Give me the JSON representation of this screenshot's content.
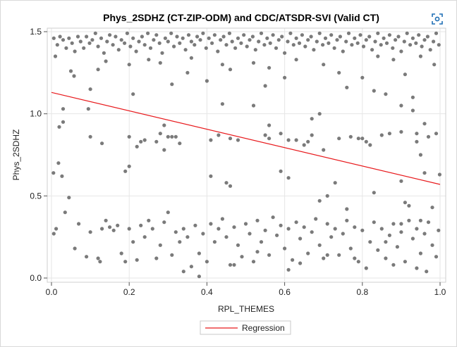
{
  "chart_data": {
    "type": "scatter",
    "title": "Phys_2SDHZ (CT-ZIP-ODM) and CDC/ATSDR-SVI (Valid CT)",
    "xlabel": "RPL_THEMES",
    "ylabel": "Phys_2SDHZ",
    "xlim": [
      0.0,
      1.0
    ],
    "ylim": [
      0.0,
      1.5
    ],
    "x_ticks": [
      "0.0",
      "0.2",
      "0.4",
      "0.6",
      "0.8",
      "1.0"
    ],
    "y_ticks": [
      "0.0",
      "0.5",
      "1.0",
      "1.5"
    ],
    "grid": true,
    "legend": {
      "placement": "bottom-center",
      "entries": [
        {
          "label": "Regression",
          "color": "#e8191c"
        }
      ]
    },
    "regression": {
      "name": "Regression",
      "x": [
        0.0,
        1.0
      ],
      "y": [
        1.13,
        0.57
      ],
      "color": "#e8191c"
    },
    "marker_color": "#7a7a7a",
    "points": [
      [
        0.006,
        1.46
      ],
      [
        0.015,
        1.42
      ],
      [
        0.022,
        1.47
      ],
      [
        0.03,
        1.45
      ],
      [
        0.038,
        1.4
      ],
      [
        0.045,
        1.46
      ],
      [
        0.053,
        1.43
      ],
      [
        0.06,
        1.38
      ],
      [
        0.068,
        1.47
      ],
      [
        0.075,
        1.44
      ],
      [
        0.083,
        1.4
      ],
      [
        0.09,
        1.47
      ],
      [
        0.098,
        1.43
      ],
      [
        0.105,
        1.45
      ],
      [
        0.113,
        1.49
      ],
      [
        0.12,
        1.41
      ],
      [
        0.128,
        1.46
      ],
      [
        0.135,
        1.37
      ],
      [
        0.143,
        1.44
      ],
      [
        0.15,
        1.48
      ],
      [
        0.158,
        1.42
      ],
      [
        0.165,
        1.47
      ],
      [
        0.173,
        1.39
      ],
      [
        0.18,
        1.45
      ],
      [
        0.188,
        1.43
      ],
      [
        0.195,
        1.49
      ],
      [
        0.203,
        1.41
      ],
      [
        0.21,
        1.46
      ],
      [
        0.218,
        1.38
      ],
      [
        0.225,
        1.44
      ],
      [
        0.233,
        1.47
      ],
      [
        0.24,
        1.42
      ],
      [
        0.248,
        1.49
      ],
      [
        0.255,
        1.4
      ],
      [
        0.263,
        1.45
      ],
      [
        0.27,
        1.48
      ],
      [
        0.278,
        1.43
      ],
      [
        0.285,
        1.37
      ],
      [
        0.293,
        1.46
      ],
      [
        0.3,
        1.44
      ],
      [
        0.308,
        1.49
      ],
      [
        0.315,
        1.41
      ],
      [
        0.323,
        1.47
      ],
      [
        0.33,
        1.43
      ],
      [
        0.338,
        1.46
      ],
      [
        0.345,
        1.39
      ],
      [
        0.353,
        1.48
      ],
      [
        0.36,
        1.44
      ],
      [
        0.368,
        1.42
      ],
      [
        0.375,
        1.47
      ],
      [
        0.383,
        1.45
      ],
      [
        0.39,
        1.49
      ],
      [
        0.398,
        1.4
      ],
      [
        0.405,
        1.46
      ],
      [
        0.413,
        1.43
      ],
      [
        0.42,
        1.48
      ],
      [
        0.428,
        1.38
      ],
      [
        0.435,
        1.45
      ],
      [
        0.443,
        1.47
      ],
      [
        0.45,
        1.42
      ],
      [
        0.458,
        1.49
      ],
      [
        0.465,
        1.44
      ],
      [
        0.473,
        1.4
      ],
      [
        0.48,
        1.46
      ],
      [
        0.488,
        1.43
      ],
      [
        0.495,
        1.48
      ],
      [
        0.503,
        1.41
      ],
      [
        0.51,
        1.45
      ],
      [
        0.518,
        1.47
      ],
      [
        0.525,
        1.39
      ],
      [
        0.533,
        1.44
      ],
      [
        0.54,
        1.49
      ],
      [
        0.548,
        1.42
      ],
      [
        0.555,
        1.46
      ],
      [
        0.563,
        1.43
      ],
      [
        0.57,
        1.48
      ],
      [
        0.578,
        1.4
      ],
      [
        0.585,
        1.45
      ],
      [
        0.593,
        1.47
      ],
      [
        0.6,
        1.37
      ],
      [
        0.608,
        1.44
      ],
      [
        0.615,
        1.49
      ],
      [
        0.623,
        1.42
      ],
      [
        0.63,
        1.46
      ],
      [
        0.638,
        1.43
      ],
      [
        0.645,
        1.48
      ],
      [
        0.653,
        1.41
      ],
      [
        0.66,
        1.45
      ],
      [
        0.668,
        1.47
      ],
      [
        0.675,
        1.39
      ],
      [
        0.683,
        1.44
      ],
      [
        0.69,
        1.49
      ],
      [
        0.698,
        1.42
      ],
      [
        0.705,
        1.46
      ],
      [
        0.713,
        1.43
      ],
      [
        0.72,
        1.48
      ],
      [
        0.728,
        1.4
      ],
      [
        0.735,
        1.45
      ],
      [
        0.743,
        1.47
      ],
      [
        0.75,
        1.38
      ],
      [
        0.758,
        1.44
      ],
      [
        0.765,
        1.49
      ],
      [
        0.773,
        1.42
      ],
      [
        0.78,
        1.46
      ],
      [
        0.788,
        1.43
      ],
      [
        0.795,
        1.48
      ],
      [
        0.803,
        1.41
      ],
      [
        0.81,
        1.45
      ],
      [
        0.818,
        1.47
      ],
      [
        0.825,
        1.39
      ],
      [
        0.833,
        1.44
      ],
      [
        0.84,
        1.49
      ],
      [
        0.848,
        1.42
      ],
      [
        0.855,
        1.46
      ],
      [
        0.863,
        1.43
      ],
      [
        0.87,
        1.48
      ],
      [
        0.878,
        1.4
      ],
      [
        0.885,
        1.45
      ],
      [
        0.893,
        1.47
      ],
      [
        0.9,
        1.38
      ],
      [
        0.908,
        1.44
      ],
      [
        0.915,
        1.49
      ],
      [
        0.923,
        1.42
      ],
      [
        0.93,
        1.46
      ],
      [
        0.938,
        1.43
      ],
      [
        0.945,
        1.48
      ],
      [
        0.953,
        1.41
      ],
      [
        0.96,
        1.45
      ],
      [
        0.968,
        1.47
      ],
      [
        0.975,
        1.39
      ],
      [
        0.983,
        1.44
      ],
      [
        0.99,
        1.49
      ],
      [
        0.997,
        1.42
      ],
      [
        0.01,
        1.35
      ],
      [
        0.05,
        1.26
      ],
      [
        0.058,
        1.23
      ],
      [
        0.12,
        1.27
      ],
      [
        0.14,
        1.32
      ],
      [
        0.2,
        1.3
      ],
      [
        0.25,
        1.33
      ],
      [
        0.28,
        1.31
      ],
      [
        0.35,
        1.25
      ],
      [
        0.36,
        1.34
      ],
      [
        0.4,
        1.2
      ],
      [
        0.44,
        1.3
      ],
      [
        0.46,
        1.27
      ],
      [
        0.52,
        1.31
      ],
      [
        0.56,
        1.28
      ],
      [
        0.6,
        1.22
      ],
      [
        0.63,
        1.33
      ],
      [
        0.7,
        1.3
      ],
      [
        0.74,
        1.25
      ],
      [
        0.8,
        1.22
      ],
      [
        0.84,
        1.35
      ],
      [
        0.88,
        1.33
      ],
      [
        0.91,
        1.24
      ],
      [
        0.95,
        1.35
      ],
      [
        0.985,
        1.3
      ],
      [
        0.1,
        1.15
      ],
      [
        0.21,
        1.12
      ],
      [
        0.31,
        1.18
      ],
      [
        0.55,
        1.17
      ],
      [
        0.76,
        1.16
      ],
      [
        0.83,
        1.14
      ],
      [
        0.86,
        1.12
      ],
      [
        0.93,
        1.1
      ],
      [
        0.03,
        1.03
      ],
      [
        0.095,
        1.03
      ],
      [
        0.44,
        1.06
      ],
      [
        0.52,
        1.05
      ],
      [
        0.69,
        1.0
      ],
      [
        0.9,
        1.05
      ],
      [
        0.93,
        1.02
      ],
      [
        0.03,
        0.95
      ],
      [
        0.29,
        0.93
      ],
      [
        0.56,
        0.93
      ],
      [
        0.67,
        0.97
      ],
      [
        0.96,
        0.94
      ],
      [
        0.02,
        0.92
      ],
      [
        0.1,
        0.86
      ],
      [
        0.13,
        0.82
      ],
      [
        0.2,
        0.86
      ],
      [
        0.22,
        0.8
      ],
      [
        0.23,
        0.83
      ],
      [
        0.24,
        0.84
      ],
      [
        0.27,
        0.83
      ],
      [
        0.28,
        0.88
      ],
      [
        0.3,
        0.86
      ],
      [
        0.31,
        0.86
      ],
      [
        0.32,
        0.86
      ],
      [
        0.29,
        0.78
      ],
      [
        0.33,
        0.82
      ],
      [
        0.41,
        0.84
      ],
      [
        0.43,
        0.87
      ],
      [
        0.46,
        0.85
      ],
      [
        0.48,
        0.84
      ],
      [
        0.55,
        0.87
      ],
      [
        0.56,
        0.85
      ],
      [
        0.59,
        0.88
      ],
      [
        0.61,
        0.84
      ],
      [
        0.63,
        0.84
      ],
      [
        0.65,
        0.81
      ],
      [
        0.66,
        0.83
      ],
      [
        0.67,
        0.87
      ],
      [
        0.7,
        0.78
      ],
      [
        0.74,
        0.85
      ],
      [
        0.77,
        0.86
      ],
      [
        0.79,
        0.85
      ],
      [
        0.8,
        0.85
      ],
      [
        0.81,
        0.83
      ],
      [
        0.82,
        0.81
      ],
      [
        0.85,
        0.87
      ],
      [
        0.87,
        0.88
      ],
      [
        0.9,
        0.89
      ],
      [
        0.94,
        0.88
      ],
      [
        0.97,
        0.86
      ],
      [
        0.99,
        0.88
      ],
      [
        0.95,
        0.75
      ],
      [
        0.94,
        0.83
      ],
      [
        0.005,
        0.64
      ],
      [
        0.018,
        0.7
      ],
      [
        0.027,
        0.62
      ],
      [
        0.19,
        0.65
      ],
      [
        0.2,
        0.68
      ],
      [
        0.41,
        0.62
      ],
      [
        0.45,
        0.58
      ],
      [
        0.46,
        0.56
      ],
      [
        0.59,
        0.65
      ],
      [
        0.61,
        0.61
      ],
      [
        0.73,
        0.58
      ],
      [
        0.9,
        0.59
      ],
      [
        0.96,
        0.64
      ],
      [
        0.999,
        0.63
      ],
      [
        0.045,
        0.49
      ],
      [
        0.69,
        0.47
      ],
      [
        0.71,
        0.5
      ],
      [
        0.76,
        0.42
      ],
      [
        0.83,
        0.52
      ],
      [
        0.91,
        0.46
      ],
      [
        0.92,
        0.44
      ],
      [
        0.95,
        0.35
      ],
      [
        0.98,
        0.43
      ],
      [
        0.006,
        0.27
      ],
      [
        0.012,
        0.3
      ],
      [
        0.035,
        0.4
      ],
      [
        0.06,
        0.18
      ],
      [
        0.07,
        0.33
      ],
      [
        0.09,
        0.13
      ],
      [
        0.1,
        0.28
      ],
      [
        0.12,
        0.12
      ],
      [
        0.13,
        0.3
      ],
      [
        0.14,
        0.35
      ],
      [
        0.15,
        0.31
      ],
      [
        0.16,
        0.29
      ],
      [
        0.17,
        0.32
      ],
      [
        0.18,
        0.15
      ],
      [
        0.19,
        0.1
      ],
      [
        0.2,
        0.3
      ],
      [
        0.21,
        0.22
      ],
      [
        0.22,
        0.11
      ],
      [
        0.23,
        0.32
      ],
      [
        0.24,
        0.25
      ],
      [
        0.25,
        0.35
      ],
      [
        0.26,
        0.3
      ],
      [
        0.27,
        0.12
      ],
      [
        0.28,
        0.2
      ],
      [
        0.29,
        0.34
      ],
      [
        0.3,
        0.4
      ],
      [
        0.31,
        0.14
      ],
      [
        0.32,
        0.28
      ],
      [
        0.33,
        0.22
      ],
      [
        0.34,
        0.3
      ],
      [
        0.35,
        0.25
      ],
      [
        0.36,
        0.07
      ],
      [
        0.37,
        0.32
      ],
      [
        0.38,
        0.15
      ],
      [
        0.39,
        0.27
      ],
      [
        0.4,
        0.1
      ],
      [
        0.41,
        0.33
      ],
      [
        0.42,
        0.22
      ],
      [
        0.43,
        0.3
      ],
      [
        0.44,
        0.36
      ],
      [
        0.45,
        0.25
      ],
      [
        0.46,
        0.08
      ],
      [
        0.47,
        0.31
      ],
      [
        0.48,
        0.2
      ],
      [
        0.49,
        0.13
      ],
      [
        0.5,
        0.33
      ],
      [
        0.51,
        0.27
      ],
      [
        0.52,
        0.1
      ],
      [
        0.53,
        0.35
      ],
      [
        0.54,
        0.22
      ],
      [
        0.55,
        0.29
      ],
      [
        0.56,
        0.14
      ],
      [
        0.57,
        0.37
      ],
      [
        0.58,
        0.26
      ],
      [
        0.59,
        0.32
      ],
      [
        0.6,
        0.18
      ],
      [
        0.61,
        0.3
      ],
      [
        0.62,
        0.11
      ],
      [
        0.63,
        0.34
      ],
      [
        0.64,
        0.24
      ],
      [
        0.65,
        0.31
      ],
      [
        0.66,
        0.15
      ],
      [
        0.67,
        0.28
      ],
      [
        0.68,
        0.36
      ],
      [
        0.69,
        0.2
      ],
      [
        0.7,
        0.12
      ],
      [
        0.71,
        0.33
      ],
      [
        0.72,
        0.25
      ],
      [
        0.73,
        0.3
      ],
      [
        0.74,
        0.14
      ],
      [
        0.75,
        0.27
      ],
      [
        0.76,
        0.35
      ],
      [
        0.77,
        0.18
      ],
      [
        0.78,
        0.31
      ],
      [
        0.79,
        0.1
      ],
      [
        0.8,
        0.29
      ],
      [
        0.81,
        0.06
      ],
      [
        0.82,
        0.22
      ],
      [
        0.83,
        0.34
      ],
      [
        0.84,
        0.17
      ],
      [
        0.85,
        0.3
      ],
      [
        0.86,
        0.12
      ],
      [
        0.87,
        0.26
      ],
      [
        0.88,
        0.33
      ],
      [
        0.89,
        0.19
      ],
      [
        0.9,
        0.28
      ],
      [
        0.91,
        0.1
      ],
      [
        0.92,
        0.35
      ],
      [
        0.93,
        0.24
      ],
      [
        0.94,
        0.3
      ],
      [
        0.95,
        0.15
      ],
      [
        0.96,
        0.27
      ],
      [
        0.97,
        0.34
      ],
      [
        0.98,
        0.2
      ],
      [
        0.99,
        0.13
      ],
      [
        0.996,
        0.29
      ],
      [
        0.125,
        0.1
      ],
      [
        0.34,
        0.04
      ],
      [
        0.38,
        0.01
      ],
      [
        0.47,
        0.08
      ],
      [
        0.61,
        0.05
      ],
      [
        0.78,
        0.12
      ],
      [
        0.88,
        0.08
      ],
      [
        0.94,
        0.06
      ],
      [
        0.965,
        0.04
      ],
      [
        0.53,
        0.16
      ],
      [
        0.64,
        0.09
      ],
      [
        0.71,
        0.14
      ],
      [
        0.86,
        0.22
      ],
      [
        0.9,
        0.33
      ]
    ]
  }
}
